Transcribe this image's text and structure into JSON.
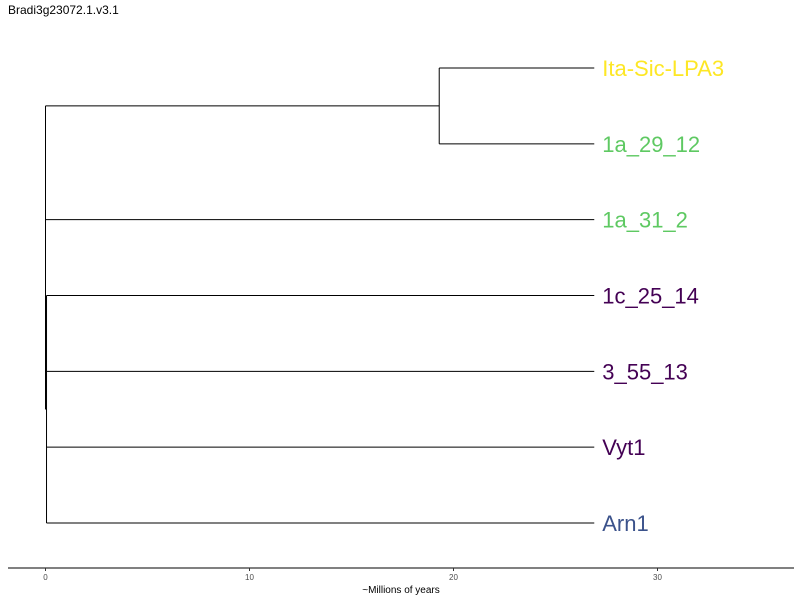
{
  "chart_data": {
    "type": "dendrogram",
    "title": "Bradi3g23072.1.v3.1",
    "xlabel": "~Millions of years",
    "xlim": [
      0,
      36.5
    ],
    "xticks": [
      0,
      10,
      20,
      30
    ],
    "grid": false,
    "tips": [
      {
        "name": "Ita-Sic-LPA3",
        "color": "#fde725"
      },
      {
        "name": "1a_29_12",
        "color": "#5ec962"
      },
      {
        "name": "1a_31_2",
        "color": "#5ec962"
      },
      {
        "name": "1c_25_14",
        "color": "#440154"
      },
      {
        "name": "3_55_13",
        "color": "#440154"
      },
      {
        "name": "Vyt1",
        "color": "#440154"
      },
      {
        "name": "Arn1",
        "color": "#3b528b"
      }
    ],
    "tree": {
      "name": "root",
      "age": 0,
      "children": [
        {
          "name": "clade-ita-1a29",
          "age": 19.3,
          "children": [
            {
              "tip": 0,
              "age": 26.9
            },
            {
              "tip": 1,
              "age": 26.9
            }
          ]
        },
        {
          "tip": 2,
          "age": 26.9
        },
        {
          "name": "subclade",
          "age": 0.05,
          "children": [
            {
              "tip": 3,
              "age": 26.9
            },
            {
              "tip": 4,
              "age": 26.9
            },
            {
              "tip": 5,
              "age": 26.9
            },
            {
              "tip": 6,
              "age": 26.9
            }
          ]
        }
      ]
    }
  }
}
